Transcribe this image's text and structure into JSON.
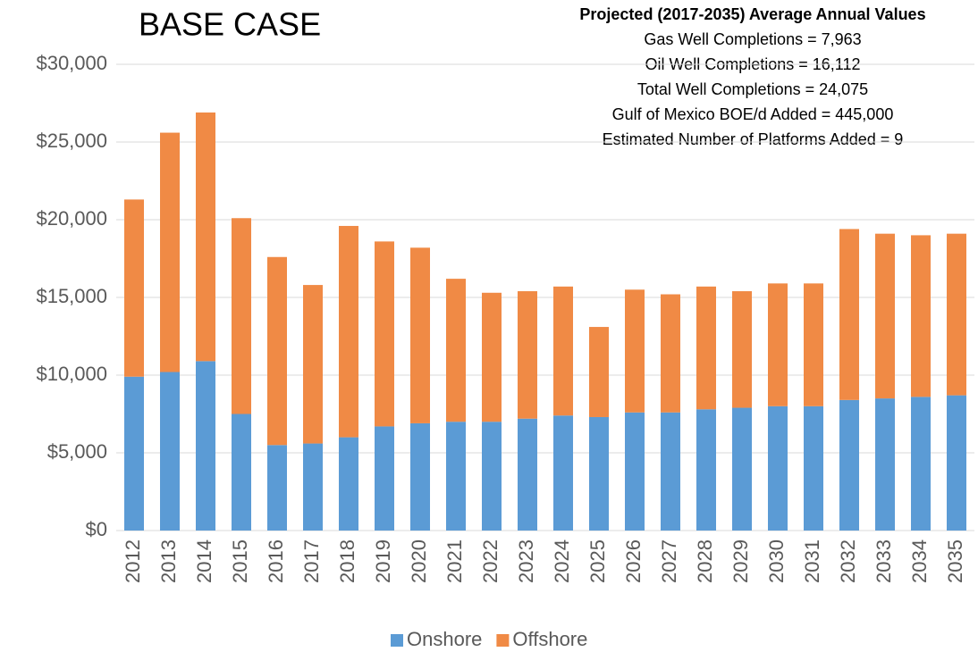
{
  "chart_data": {
    "type": "stacked_bar",
    "title": "BASE CASE",
    "annotation": {
      "heading": "Projected (2017-2035) Average Annual Values",
      "lines": [
        "Gas Well Completions = 7,963",
        "Oil Well Completions = 16,112",
        "Total Well Completions = 24,075",
        "Gulf of Mexico BOE/d Added = 445,000",
        "Estimated Number of Platforms Added = 9"
      ]
    },
    "categories": [
      "2012",
      "2013",
      "2014",
      "2015",
      "2016",
      "2017",
      "2018",
      "2019",
      "2020",
      "2021",
      "2022",
      "2023",
      "2024",
      "2025",
      "2026",
      "2027",
      "2028",
      "2029",
      "2030",
      "2031",
      "2032",
      "2033",
      "2034",
      "2035"
    ],
    "series": [
      {
        "name": "Onshore",
        "color": "#5b9bd5",
        "values": [
          9900,
          10200,
          10900,
          7500,
          5500,
          5600,
          6000,
          6700,
          6900,
          7000,
          7000,
          7200,
          7400,
          7300,
          7600,
          7600,
          7800,
          7900,
          8000,
          8000,
          8400,
          8500,
          8600,
          8700
        ]
      },
      {
        "name": "Offshore",
        "color": "#f08a45",
        "values": [
          11400,
          15400,
          16000,
          12600,
          12100,
          10200,
          13600,
          11900,
          11300,
          9200,
          8300,
          8200,
          8300,
          5800,
          7900,
          7600,
          7900,
          7500,
          7900,
          7900,
          11000,
          10600,
          10400,
          10400
        ]
      }
    ],
    "ylim": [
      0,
      30000
    ],
    "yticks": [
      {
        "value": 0,
        "label": "$0"
      },
      {
        "value": 5000,
        "label": "$5,000"
      },
      {
        "value": 10000,
        "label": "$10,000"
      },
      {
        "value": 15000,
        "label": "$15,000"
      },
      {
        "value": 20000,
        "label": "$20,000"
      },
      {
        "value": 25000,
        "label": "$25,000"
      },
      {
        "value": 30000,
        "label": "$30,000"
      }
    ],
    "grid": true,
    "legend": "bottom"
  }
}
